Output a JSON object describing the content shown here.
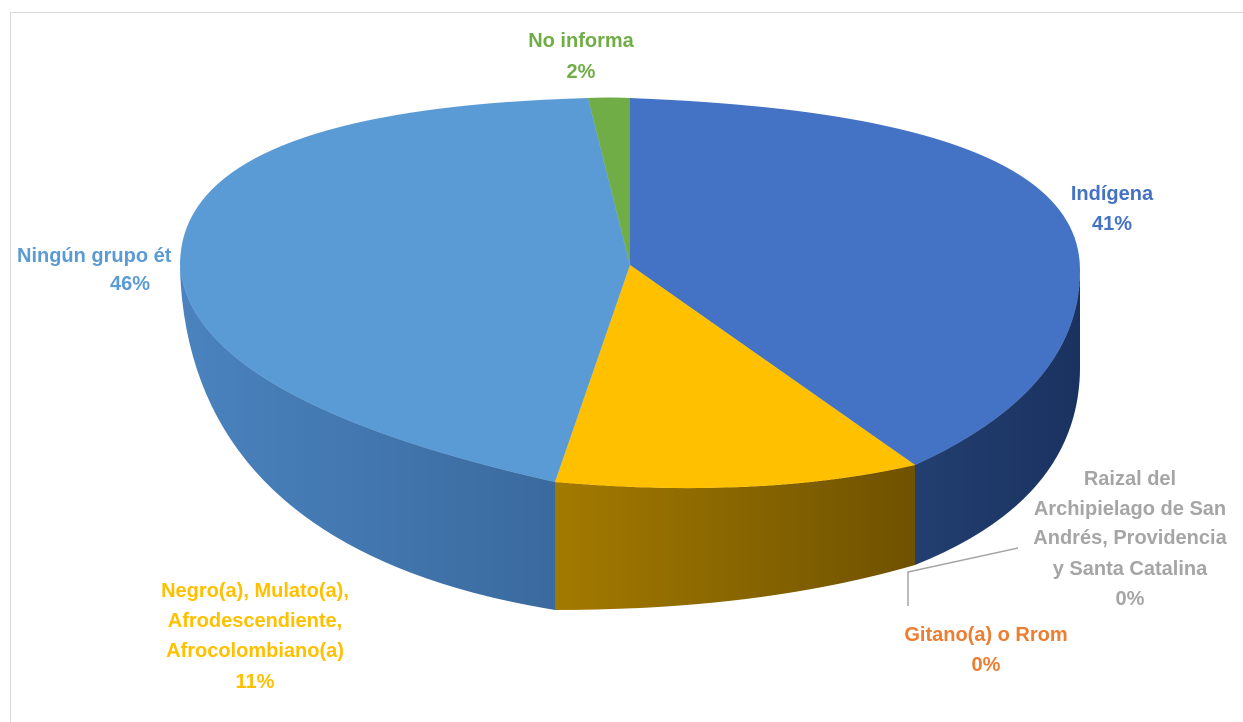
{
  "chart_data": {
    "type": "pie",
    "title": "",
    "slices": [
      {
        "label": "Indígena",
        "value": 41,
        "percent_label": "41%",
        "color": "#4472C4",
        "label_color": "#4472C4"
      },
      {
        "label": "Negro(a), Mulato(a), Afrodescendiente, Afrocolombiano(a)",
        "label_lines": [
          "Negro(a), Mulato(a),",
          "Afrodescendiente,",
          "Afrocolombiano(a)"
        ],
        "value": 11,
        "percent_label": "11%",
        "color": "#FFC000",
        "label_color": "#FFC000"
      },
      {
        "label": "Ningún grupo étnico",
        "label_lines": [
          "Ningún grupo ét"
        ],
        "value": 46,
        "percent_label": "46%",
        "color": "#5B9BD5",
        "label_color": "#5B9BD5"
      },
      {
        "label": "No informa",
        "value": 2,
        "percent_label": "2%",
        "color": "#70AD47",
        "label_color": "#70AD47"
      },
      {
        "label": "Gitano(a) o Rrom",
        "value": 0,
        "percent_label": "0%",
        "color": "#ED7D31",
        "label_color": "#ED7D31"
      },
      {
        "label": "Raizal del Archipielago de San Andrés, Providencia y Santa Catalina",
        "label_lines": [
          "Raizal del",
          "Archipielago de San",
          "Andrés, Providencia",
          "y Santa Catalina"
        ],
        "value": 0,
        "percent_label": "0%",
        "color": "#A5A5A5",
        "label_color": "#A5A5A5"
      }
    ],
    "legend": "none",
    "style": "3d-pie"
  }
}
